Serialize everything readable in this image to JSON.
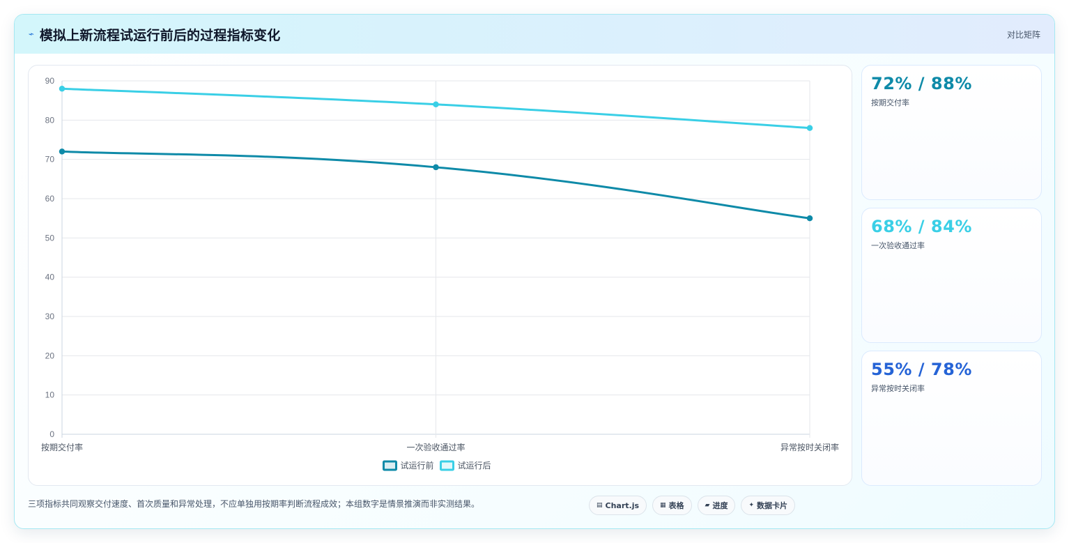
{
  "header": {
    "icon": "chart-line-icon",
    "title": "模拟上新流程试运行前后的过程指标变化",
    "matrix_link": "对比矩阵"
  },
  "chart_data": {
    "type": "line",
    "categories": [
      "按期交付率",
      "一次验收通过率",
      "异常按时关闭率"
    ],
    "series": [
      {
        "name": "试运行前",
        "values": [
          72,
          68,
          55
        ],
        "color": "#0e8aa8"
      },
      {
        "name": "试运行后",
        "values": [
          88,
          84,
          78
        ],
        "color": "#3acfe6"
      }
    ],
    "ylim": [
      0,
      90
    ],
    "yticks": [
      0,
      10,
      20,
      30,
      40,
      50,
      60,
      70,
      80,
      90
    ],
    "grid": true,
    "legend": "bottom"
  },
  "stats": [
    {
      "value": "72% / 88%",
      "label": "按期交付率",
      "color": "#0e8aa8"
    },
    {
      "value": "68% / 84%",
      "label": "一次验收通过率",
      "color": "#3acfe6"
    },
    {
      "value": "55% / 78%",
      "label": "异常按时关闭率",
      "color": "#2563d6"
    }
  ],
  "footnote": "三项指标共同观察交付速度、首次质量和异常处理，不应单独用按期率判断流程成效；本组数字是情景推演而非实测结果。",
  "tags": [
    {
      "label": "Chart.js",
      "icon": "chart-icon"
    },
    {
      "label": "表格",
      "icon": "table-icon"
    },
    {
      "label": "进度",
      "icon": "progress-icon"
    },
    {
      "label": "数据卡片",
      "icon": "card-icon"
    }
  ]
}
